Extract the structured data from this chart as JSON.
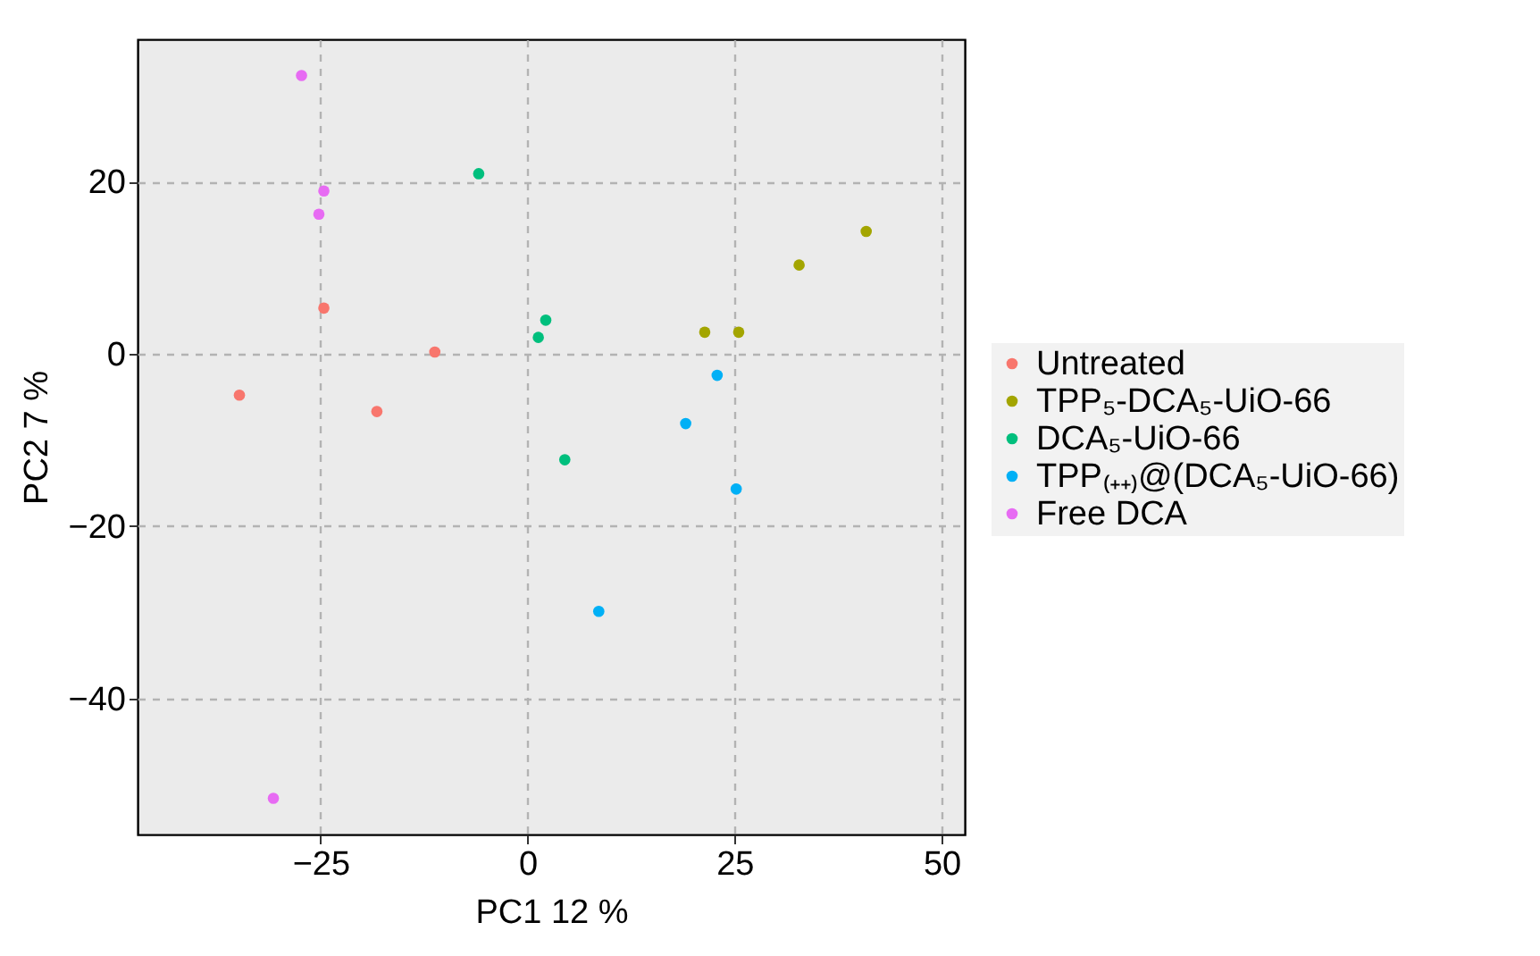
{
  "chart_data": {
    "type": "scatter",
    "xlabel": "PC1 12 %",
    "ylabel": "PC2 7 %",
    "xlim": [
      -47.1,
      52.8
    ],
    "ylim": [
      -55.8,
      36.5
    ],
    "xticks": [
      -25,
      0,
      25,
      50
    ],
    "yticks": [
      -40,
      -20,
      0,
      20
    ],
    "grid": true,
    "legend": "right",
    "marker": "circle",
    "series": [
      {
        "name": "Untreated",
        "color": "#f8766d",
        "x": [
          -24.6,
          -11.2,
          -34.8,
          -18.2
        ],
        "values": [
          5.3,
          0.2,
          -4.8,
          -6.7
        ]
      },
      {
        "name": "TPP₅-DCA₅-UiO-66",
        "color": "#a3a500",
        "x": [
          40.9,
          32.8,
          21.4,
          25.5
        ],
        "values": [
          14.2,
          10.3,
          2.5,
          2.5
        ]
      },
      {
        "name": "DCA₅-UiO-66",
        "color": "#00bf7d",
        "x": [
          -5.9,
          2.2,
          1.3,
          4.5
        ],
        "values": [
          20.9,
          3.9,
          1.9,
          -12.3
        ]
      },
      {
        "name": "TPP₍₊₊₎@(DCA₅-UiO-66)",
        "color": "#00b0f6",
        "x": [
          22.9,
          19.1,
          25.2,
          8.6
        ],
        "values": [
          -2.5,
          -8.1,
          -15.7,
          -29.9
        ]
      },
      {
        "name": "Free DCA",
        "color": "#e76bf3",
        "x": [
          -27.3,
          -24.6,
          -25.2,
          -30.7
        ],
        "values": [
          32.3,
          18.9,
          16.2,
          -51.6
        ]
      }
    ]
  }
}
